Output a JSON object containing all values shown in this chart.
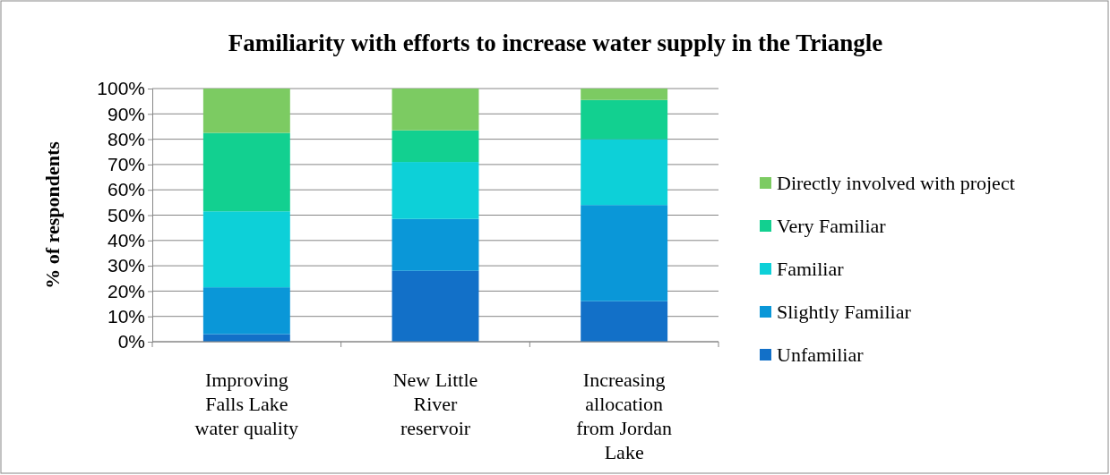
{
  "chart_data": {
    "type": "bar",
    "title": "Familiarity with efforts to increase water supply in the Triangle",
    "ylabel": "% of respondents",
    "stacked": true,
    "categories": [
      "Improving Falls Lake water quality",
      "New Little River reservoir",
      "Increasing allocation from Jordan Lake"
    ],
    "series": [
      {
        "name": "Unfamiliar",
        "color": "#1270c8",
        "values": [
          3,
          28,
          16
        ]
      },
      {
        "name": "Slightly Familiar",
        "color": "#0a97d8",
        "values": [
          18.5,
          20.5,
          38
        ]
      },
      {
        "name": "Familiar",
        "color": "#0dd0d8",
        "values": [
          30,
          22.5,
          26
        ]
      },
      {
        "name": "Very Familiar",
        "color": "#12d090",
        "values": [
          31,
          12.5,
          15.5
        ]
      },
      {
        "name": "Directly involved with project",
        "color": "#7ccb62",
        "values": [
          17.5,
          16.5,
          4.5
        ]
      }
    ],
    "ylim": [
      0,
      100
    ],
    "yticks": [
      {
        "value": 0,
        "label": "0%"
      },
      {
        "value": 10,
        "label": "10%"
      },
      {
        "value": 20,
        "label": "20%"
      },
      {
        "value": 30,
        "label": "30%"
      },
      {
        "value": 40,
        "label": "40%"
      },
      {
        "value": 50,
        "label": "50%"
      },
      {
        "value": 60,
        "label": "60%"
      },
      {
        "value": 70,
        "label": "70%"
      },
      {
        "value": 80,
        "label": "80%"
      },
      {
        "value": 90,
        "label": "90%"
      },
      {
        "value": 100,
        "label": "100%"
      }
    ],
    "grid": "y",
    "legend": "right"
  }
}
